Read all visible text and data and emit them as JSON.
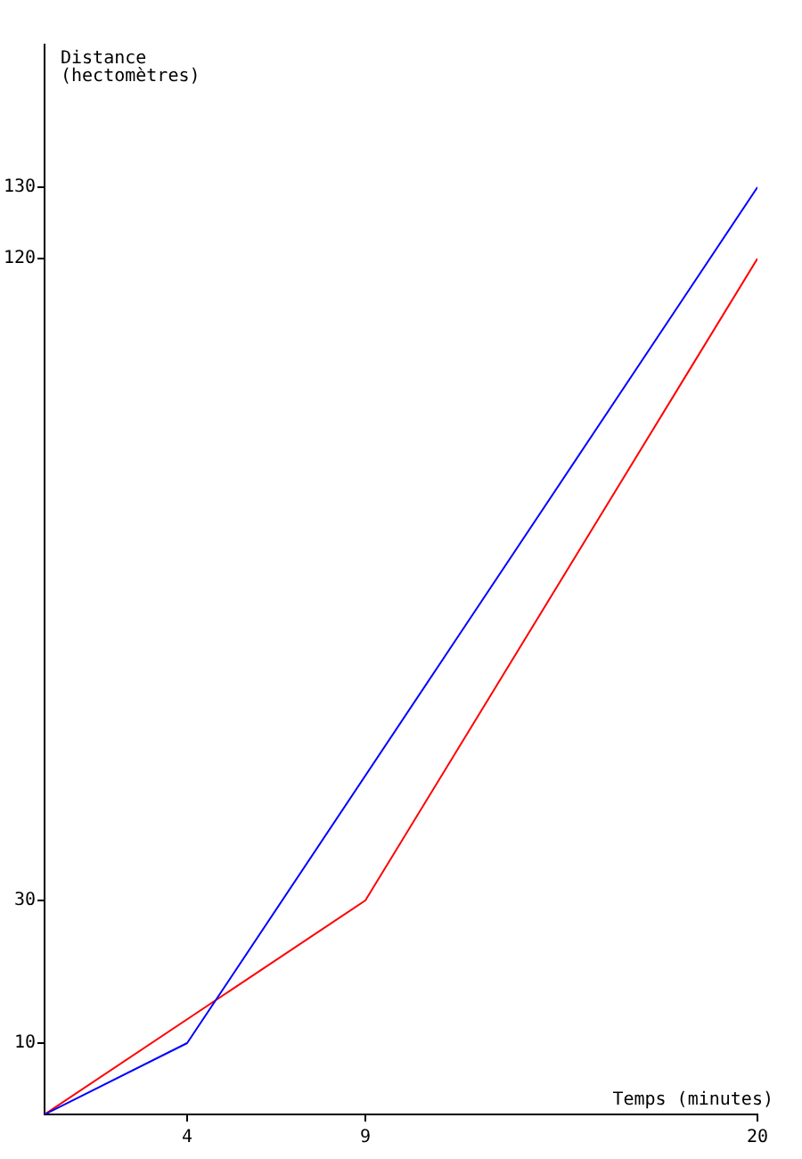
{
  "chart_data": {
    "type": "line",
    "xlabel": "Temps (minutes)",
    "ylabel": "Distance\n(hectomètres)",
    "series": [
      {
        "color": "#0000ff",
        "x": [
          0,
          4,
          20
        ],
        "values": [
          0,
          10,
          130
        ]
      },
      {
        "color": "#ff0000",
        "x": [
          0,
          9,
          20
        ],
        "values": [
          0,
          30,
          120
        ]
      }
    ],
    "xlim": [
      0,
      20
    ],
    "xticks": [
      4,
      9,
      20
    ],
    "ylim": [
      0,
      150
    ],
    "yticks": [
      10,
      30,
      120,
      130
    ],
    "grid": false,
    "legend": false,
    "marker": "none",
    "line_style": "solid"
  }
}
